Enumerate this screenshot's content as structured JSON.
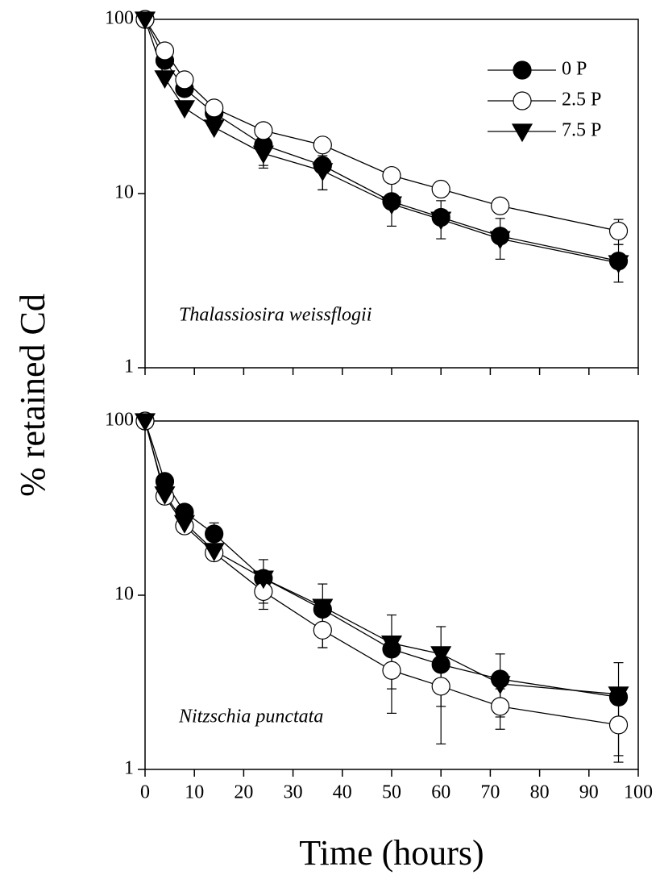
{
  "shared": {
    "ylabel": "% retained Cd",
    "xlabel": "Time (hours)"
  },
  "chart_data": [
    {
      "type": "line",
      "annotation": "Thalassiosira weissflogii",
      "x": [
        0,
        4,
        8,
        14,
        24,
        36,
        50,
        60,
        72,
        96
      ],
      "xlim": [
        0,
        100
      ],
      "xticks": [
        0,
        10,
        20,
        30,
        40,
        50,
        60,
        70,
        80,
        90,
        100
      ],
      "xtick_labels": false,
      "ylim": [
        1,
        100
      ],
      "yticks": [
        1,
        10,
        100
      ],
      "log_y": true,
      "legend": "upper right",
      "series": [
        {
          "name": "0 P",
          "color": "#000000",
          "fill": "#000000",
          "marker": "circle",
          "values": [
            100,
            58,
            40,
            29,
            19,
            14.5,
            9,
            7.3,
            5.7,
            4.1
          ],
          "errors": [
            null,
            null,
            null,
            null,
            4.5,
            4,
            2.5,
            1.8,
            1.5,
            1
          ]
        },
        {
          "name": "2.5 P",
          "color": "#000000",
          "fill": "#ffffff",
          "marker": "circle",
          "values": [
            100,
            66,
            45,
            31,
            23,
            19,
            12.7,
            10.6,
            8.5,
            6.1
          ],
          "errors": [
            null,
            null,
            null,
            null,
            null,
            null,
            null,
            null,
            null,
            1
          ]
        },
        {
          "name": "7.5 P",
          "color": "#000000",
          "fill": "#000000",
          "marker": "triangle-down",
          "values": [
            100,
            46,
            31,
            24,
            17,
            13.5,
            8.7,
            7.1,
            5.5,
            4.0
          ],
          "errors": [
            null,
            null,
            null,
            null,
            3,
            3,
            null,
            null,
            null,
            null
          ]
        }
      ]
    },
    {
      "type": "line",
      "annotation": "Nitzschia punctata",
      "x": [
        0,
        4,
        8,
        14,
        24,
        36,
        50,
        60,
        72,
        96
      ],
      "xlim": [
        0,
        100
      ],
      "xticks": [
        0,
        10,
        20,
        30,
        40,
        50,
        60,
        70,
        80,
        90,
        100
      ],
      "xtick_labels": true,
      "ylim": [
        1,
        100
      ],
      "yticks": [
        1,
        10,
        100
      ],
      "log_y": true,
      "series": [
        {
          "name": "0 P",
          "color": "#000000",
          "fill": "#000000",
          "marker": "circle",
          "values": [
            100,
            45,
            30,
            22.5,
            12.5,
            8.3,
            4.9,
            4.0,
            3.3,
            2.6
          ],
          "errors": [
            null,
            null,
            null,
            3.5,
            3.5,
            3.3,
            2.8,
            2.6,
            1.3,
            1.5
          ]
        },
        {
          "name": "2.5 P",
          "color": "#000000",
          "fill": "#ffffff",
          "marker": "circle",
          "values": [
            100,
            37,
            25,
            17.5,
            10.5,
            6.3,
            3.7,
            3.0,
            2.3,
            1.8
          ],
          "errors": [
            null,
            null,
            null,
            null,
            2.2,
            1.3,
            0.8,
            0.7,
            0.6,
            0.6
          ]
        },
        {
          "name": "7.5 P",
          "color": "#000000",
          "fill": "#000000",
          "marker": "triangle-down",
          "values": [
            100,
            38,
            26,
            18,
            12.5,
            8.6,
            5.3,
            4.6,
            3.1,
            2.7
          ],
          "errors": [
            null,
            null,
            null,
            null,
            null,
            null,
            null,
            null,
            null,
            null
          ]
        }
      ]
    }
  ]
}
